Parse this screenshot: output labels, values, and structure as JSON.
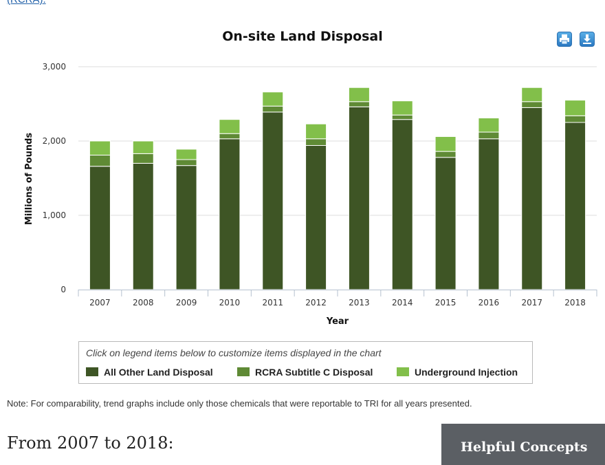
{
  "top_link": "(RCRA).",
  "toolbar": {
    "print_icon": "printer-icon",
    "download_icon": "download-icon",
    "accent": "#2b79c2"
  },
  "chart_data": {
    "type": "bar",
    "stacked": true,
    "title": "On-site Land Disposal",
    "xlabel": "Year",
    "ylabel": "Millions of Pounds",
    "ylim": [
      0,
      3000
    ],
    "yticks": [
      0,
      1000,
      2000,
      3000
    ],
    "ytick_labels": [
      "0",
      "1,000",
      "2,000",
      "3,000"
    ],
    "grid": true,
    "categories": [
      "2007",
      "2008",
      "2009",
      "2010",
      "2011",
      "2012",
      "2013",
      "2014",
      "2015",
      "2016",
      "2017",
      "2018"
    ],
    "series": [
      {
        "name": "All Other Land Disposal",
        "color": "#3e5525",
        "values": [
          1660,
          1700,
          1670,
          2030,
          2390,
          1940,
          2460,
          2290,
          1780,
          2030,
          2450,
          2250
        ]
      },
      {
        "name": "RCRA Subtitle C Disposal",
        "color": "#5f8a35",
        "values": [
          150,
          130,
          80,
          70,
          80,
          90,
          70,
          60,
          80,
          90,
          80,
          90
        ]
      },
      {
        "name": "Underground Injection",
        "color": "#82bf4a",
        "values": [
          190,
          170,
          140,
          190,
          190,
          200,
          190,
          190,
          200,
          190,
          190,
          210
        ]
      }
    ],
    "legend_hint": "Click on legend items below to customize items displayed in the chart",
    "legend_position": "bottom"
  },
  "note": "Note: For comparability, trend graphs include only those chemicals that were reportable to TRI for all years presented.",
  "section_heading": "From 2007 to 2018:",
  "sidebar": {
    "title": "Helpful Concepts"
  }
}
